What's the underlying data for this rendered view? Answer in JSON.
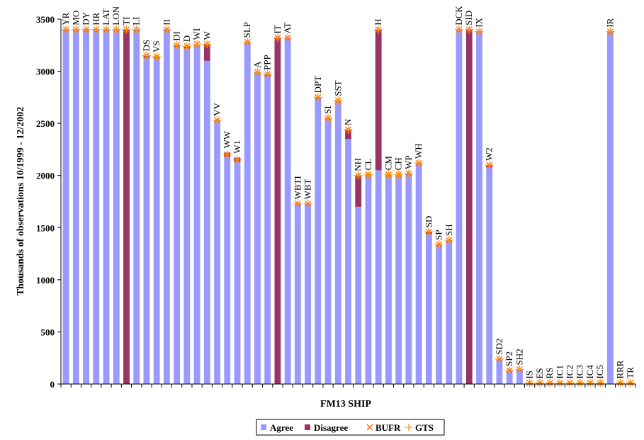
{
  "chart_data": {
    "type": "bar",
    "xlabel": "FM13 SHIP",
    "ylabel": "Thousands of observations 10/1999 - 12/2002",
    "ylim": [
      0,
      3500
    ],
    "yticks": [
      0,
      500,
      1000,
      1500,
      2000,
      2500,
      3000,
      3500
    ],
    "grid": false,
    "legend_position": "bottom",
    "colors": {
      "agree": "#9999ff",
      "disagree": "#993366",
      "bufr": "#ff6600",
      "gts": "#ff9900",
      "axis": "#000000"
    },
    "series": [
      {
        "name": "Agree",
        "kind": "bar"
      },
      {
        "name": "Disagree",
        "kind": "bar"
      },
      {
        "name": "BUFR",
        "kind": "marker"
      },
      {
        "name": "GTS",
        "kind": "marker"
      }
    ],
    "categories": [
      "YR",
      "MO",
      "DY",
      "HR",
      "LAT",
      "LON",
      "TI",
      "LI",
      "DS",
      "VS",
      "II",
      "DI",
      "D",
      "WI",
      "W",
      "VV",
      "WW",
      "W1",
      "SLP",
      "A",
      "PPP",
      "IT",
      "AT",
      "WBTI",
      "WBT",
      "DPT",
      "SI",
      "SST",
      "N",
      "NH",
      "CL",
      "H",
      "CM",
      "CH",
      "WP",
      "WH",
      "SD",
      "SP",
      "SH",
      "DCK",
      "SID",
      "IX",
      "W2",
      "SD2",
      "SP2",
      "SH2",
      "IS",
      "ES",
      "RS",
      "IC1",
      "IC2",
      "IC3",
      "IC4",
      "IC5",
      "IR",
      "RRR",
      "TR"
    ],
    "agree": [
      3400,
      3400,
      3400,
      3400,
      3400,
      3400,
      0,
      3400,
      3130,
      3130,
      3400,
      3240,
      3220,
      3250,
      3100,
      2530,
      2180,
      2130,
      3280,
      2990,
      2960,
      0,
      3320,
      1730,
      1730,
      2750,
      2550,
      2720,
      2350,
      1700,
      2010,
      2050,
      2010,
      2010,
      2020,
      2120,
      1440,
      1340,
      1380,
      3400,
      0,
      3380,
      2080,
      240,
      130,
      140,
      10,
      10,
      10,
      10,
      10,
      10,
      10,
      10,
      3380,
      10,
      10
    ],
    "disagree": [
      0,
      0,
      0,
      0,
      0,
      0,
      3400,
      0,
      20,
      10,
      0,
      10,
      20,
      0,
      160,
      0,
      40,
      40,
      0,
      0,
      10,
      3320,
      0,
      0,
      0,
      0,
      0,
      0,
      90,
      300,
      0,
      1350,
      0,
      0,
      0,
      0,
      20,
      0,
      0,
      0,
      3400,
      0,
      20,
      0,
      0,
      0,
      0,
      0,
      0,
      0,
      0,
      0,
      0,
      0,
      0,
      0,
      0
    ],
    "markers": [
      3400,
      3400,
      3400,
      3400,
      3400,
      3400,
      3400,
      3400,
      3150,
      3140,
      3400,
      3250,
      3240,
      3260,
      3260,
      2530,
      2200,
      2150,
      3280,
      2990,
      2970,
      3320,
      3320,
      1730,
      1730,
      2750,
      2550,
      2720,
      2440,
      2000,
      2010,
      3400,
      2010,
      2010,
      2020,
      2120,
      1460,
      1340,
      1380,
      3400,
      3400,
      3380,
      2100,
      240,
      130,
      140,
      10,
      10,
      10,
      10,
      10,
      10,
      10,
      10,
      3380,
      10,
      10
    ]
  }
}
